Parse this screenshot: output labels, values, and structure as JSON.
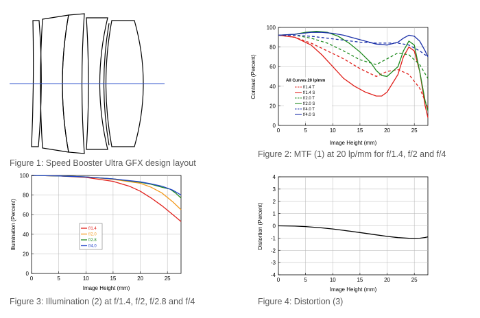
{
  "captions": {
    "fig1": "Figure 1: Speed Booster Ultra GFX design layout",
    "fig2": "Figure 2: MTF (1) at 20 lp/mm for f/1.4, f/2 and f/4",
    "fig3": "Figure 3: Illumination (2) at f/1.4, f/2, f/2.8 and f/4",
    "fig4": "Figure 4: Distortion (3)"
  },
  "chart_data": [
    {
      "type": "line",
      "id": "mtf",
      "xlabel": "Image Height (mm)",
      "ylabel": "Contrast (Percent)",
      "xlim": [
        0,
        27.5
      ],
      "ylim": [
        0,
        100
      ],
      "xticks": [
        0,
        5,
        10,
        15,
        20,
        25
      ],
      "yticks": [
        0,
        20,
        40,
        60,
        80,
        100
      ],
      "grid": true,
      "legend_title": "All Curves 20 lp/mm",
      "legend_position": "center-left",
      "series": [
        {
          "name": "f/1.4 T",
          "color": "#e0201b",
          "dash": true,
          "x": [
            0,
            3,
            6,
            9,
            12,
            15,
            18,
            20,
            22,
            24,
            26,
            27.5
          ],
          "y": [
            92,
            90,
            84,
            76,
            68,
            58,
            50,
            55,
            57,
            52,
            38,
            18
          ]
        },
        {
          "name": "f/1.4 S",
          "color": "#e0201b",
          "dash": false,
          "x": [
            0,
            3,
            6,
            8,
            10,
            12,
            14,
            16,
            18,
            19,
            20,
            22,
            23,
            24,
            25,
            26,
            27,
            27.5
          ],
          "y": [
            92,
            90,
            82,
            72,
            60,
            48,
            40,
            34,
            30,
            30,
            34,
            52,
            70,
            80,
            76,
            55,
            20,
            8
          ]
        },
        {
          "name": "f/2.0 T",
          "color": "#1e8a1e",
          "dash": true,
          "x": [
            0,
            3,
            6,
            9,
            12,
            15,
            18,
            20,
            22,
            24,
            26,
            27.5
          ],
          "y": [
            92,
            92,
            89,
            84,
            76,
            67,
            62,
            68,
            74,
            72,
            62,
            48
          ]
        },
        {
          "name": "f/2.0 S",
          "color": "#1e8a1e",
          "dash": false,
          "x": [
            0,
            3,
            5,
            7,
            9,
            11,
            13,
            15,
            17,
            18,
            19,
            20,
            22,
            23,
            24,
            25,
            26,
            27,
            27.5
          ],
          "y": [
            92,
            93,
            95,
            96,
            95,
            91,
            84,
            75,
            64,
            56,
            51,
            50,
            60,
            76,
            86,
            82,
            55,
            25,
            15
          ]
        },
        {
          "name": "f/4.0 T",
          "color": "#1a2fa8",
          "dash": true,
          "x": [
            0,
            3,
            6,
            9,
            12,
            15,
            18,
            20,
            22,
            24,
            26,
            27.5
          ],
          "y": [
            92,
            92,
            91,
            89,
            87,
            85,
            84,
            84,
            84,
            82,
            76,
            70
          ]
        },
        {
          "name": "f/4.0 S",
          "color": "#1a2fa8",
          "dash": false,
          "x": [
            0,
            3,
            6,
            8,
            10,
            12,
            14,
            16,
            18,
            20,
            22,
            23,
            24,
            25,
            26,
            27,
            27.5
          ],
          "y": [
            92,
            93,
            95,
            95,
            94,
            92,
            89,
            86,
            83,
            82,
            85,
            89,
            92,
            91,
            86,
            76,
            70
          ]
        }
      ]
    },
    {
      "type": "line",
      "id": "illumination",
      "xlabel": "Image Height (mm)",
      "ylabel": "Illumination (Percent)",
      "xlim": [
        0,
        27.5
      ],
      "ylim": [
        0,
        100
      ],
      "xticks": [
        0,
        5,
        10,
        15,
        20,
        25
      ],
      "yticks": [
        0,
        20,
        40,
        60,
        80,
        100
      ],
      "grid": true,
      "legend_position": "center",
      "series": [
        {
          "name": "f/1.4",
          "color": "#e0201b",
          "x": [
            0,
            5,
            10,
            15,
            18,
            20,
            22,
            24,
            26,
            27.5
          ],
          "y": [
            100,
            99.5,
            98,
            94,
            89,
            84,
            77,
            69,
            60,
            53
          ]
        },
        {
          "name": "f/2.0",
          "color": "#f39a1e",
          "x": [
            0,
            5,
            10,
            15,
            20,
            22,
            24,
            26,
            27.5
          ],
          "y": [
            100,
            99.5,
            98.5,
            96,
            92,
            88,
            82,
            73,
            65
          ]
        },
        {
          "name": "f/2.8",
          "color": "#1e8a1e",
          "x": [
            0,
            5,
            10,
            15,
            20,
            22,
            24,
            25.5,
            26.5,
            27.5
          ],
          "y": [
            100,
            99.5,
            98.5,
            96.5,
            93,
            91,
            88,
            86,
            82,
            77
          ]
        },
        {
          "name": "f/4.0",
          "color": "#2244c8",
          "x": [
            0,
            5,
            10,
            15,
            20,
            22,
            24,
            26,
            27.5
          ],
          "y": [
            100,
            99.5,
            98.5,
            96.5,
            93.5,
            91.5,
            89,
            85,
            80
          ]
        }
      ]
    },
    {
      "type": "line",
      "id": "distortion",
      "xlabel": "Image Height (mm)",
      "ylabel": "Distortion (Percent)",
      "xlim": [
        0,
        27.5
      ],
      "ylim": [
        -4,
        4
      ],
      "xticks": [
        0,
        5,
        10,
        15,
        20,
        25
      ],
      "yticks": [
        -4,
        -3,
        -2,
        -1,
        0,
        1,
        2,
        3,
        4
      ],
      "grid": true,
      "series": [
        {
          "name": "",
          "color": "#000000",
          "x": [
            0,
            3,
            5,
            8,
            10,
            12,
            15,
            18,
            20,
            22,
            24,
            25,
            26,
            27,
            27.5
          ],
          "y": [
            0,
            -0.02,
            -0.06,
            -0.17,
            -0.26,
            -0.37,
            -0.55,
            -0.74,
            -0.86,
            -0.96,
            -1.02,
            -1.03,
            -1.01,
            -0.95,
            -0.9
          ]
        }
      ]
    }
  ]
}
